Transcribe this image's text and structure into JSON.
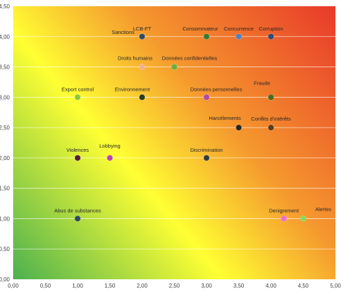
{
  "chart_data": {
    "type": "scatter",
    "title": "",
    "xlabel": "",
    "ylabel": "",
    "xlim": [
      0,
      5
    ],
    "ylim": [
      0,
      4.5
    ],
    "x_ticks": [
      "0,00",
      "0,50",
      "1,00",
      "1,50",
      "2,00",
      "2,50",
      "3,00",
      "3,50",
      "4,00",
      "4,50",
      "5,00"
    ],
    "y_ticks": [
      "0,00",
      "0,50",
      "1,00",
      "1,50",
      "2,00",
      "2,50",
      "3,00",
      "3,50",
      "4,00",
      "4,50"
    ],
    "grid": "horizontal",
    "background": {
      "type": "diagonal-gradient",
      "low_color": "#4cb050",
      "mid_color": "#ffff33",
      "high_color": "#e8392a"
    },
    "points": [
      {
        "label": "LCB-FT",
        "x": 2.0,
        "y": 4.0,
        "color": "#2f4a5e"
      },
      {
        "label": "Sanctions",
        "x": 2.0,
        "y": 4.0,
        "color": "#2f4a5e"
      },
      {
        "label": "Consommateur",
        "x": 3.0,
        "y": 4.0,
        "color": "#3a7a2e"
      },
      {
        "label": "Concurrence",
        "x": 3.5,
        "y": 4.0,
        "color": "#4f7fb8"
      },
      {
        "label": "Corruption",
        "x": 4.0,
        "y": 4.0,
        "color": "#2f4a6e"
      },
      {
        "label": "Droits humains",
        "x": 2.0,
        "y": 3.5,
        "color": "#f0b090"
      },
      {
        "label": "Données confidentielles",
        "x": 2.5,
        "y": 3.5,
        "color": "#6aae3a"
      },
      {
        "label": "Export control",
        "x": 1.0,
        "y": 3.0,
        "color": "#8cc63f"
      },
      {
        "label": "Environnement",
        "x": 2.0,
        "y": 3.0,
        "color": "#2a3a1e"
      },
      {
        "label": "Données personnelles",
        "x": 3.0,
        "y": 3.0,
        "color": "#b04aa0"
      },
      {
        "label": "Fraude",
        "x": 4.0,
        "y": 3.0,
        "color": "#4a6a1e"
      },
      {
        "label": "Harcèlements",
        "x": 3.5,
        "y": 2.5,
        "color": "#262626"
      },
      {
        "label": "Conflits d'intérêts",
        "x": 4.0,
        "y": 2.5,
        "color": "#5a3a1a"
      },
      {
        "label": "Violences",
        "x": 1.0,
        "y": 2.0,
        "color": "#5a1a3a"
      },
      {
        "label": "Lobbying",
        "x": 1.5,
        "y": 2.0,
        "color": "#c040b0"
      },
      {
        "label": "Discrimination",
        "x": 3.0,
        "y": 2.0,
        "color": "#333b3e"
      },
      {
        "label": "Abus de substances",
        "x": 1.0,
        "y": 1.0,
        "color": "#2e4a60"
      },
      {
        "label": "Denigrement",
        "x": 4.2,
        "y": 1.0,
        "color": "#ee6bd0"
      },
      {
        "label": "Alertes",
        "x": 4.5,
        "y": 1.0,
        "color": "#8cd65a"
      }
    ]
  }
}
